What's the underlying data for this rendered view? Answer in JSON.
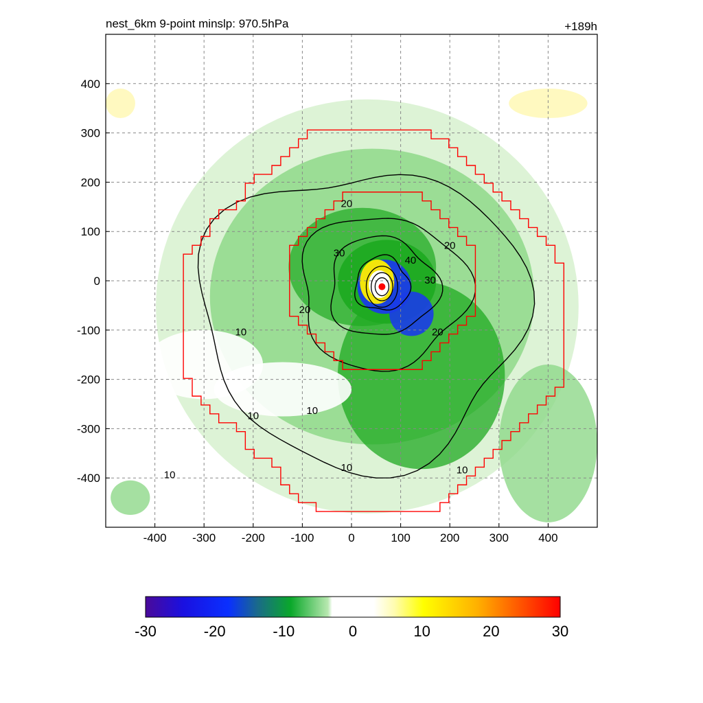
{
  "chart_data": {
    "type": "heatmap",
    "title_left": "nest_6km  9-point minslp: 970.5hPa",
    "title_right": "+189h",
    "xlim": [
      -500,
      500
    ],
    "ylim": [
      -500,
      500
    ],
    "x_ticks": [
      -400,
      -300,
      -200,
      -100,
      0,
      100,
      200,
      300,
      400
    ],
    "y_ticks": [
      400,
      300,
      200,
      100,
      0,
      -100,
      -200,
      -300,
      -400
    ],
    "grid": true,
    "center": [
      62,
      -12
    ],
    "contour_levels": [
      10,
      20,
      30,
      40
    ],
    "contour_labels": [
      {
        "text": "20",
        "x": -10,
        "y": 155
      },
      {
        "text": "20",
        "x": 200,
        "y": 70
      },
      {
        "text": "30",
        "x": -25,
        "y": 55
      },
      {
        "text": "40",
        "x": 120,
        "y": 40
      },
      {
        "text": "30",
        "x": 160,
        "y": 0
      },
      {
        "text": "20",
        "x": -95,
        "y": -60
      },
      {
        "text": "20",
        "x": 175,
        "y": -105
      },
      {
        "text": "10",
        "x": -225,
        "y": -105
      },
      {
        "text": "10",
        "x": -200,
        "y": -275
      },
      {
        "text": "10",
        "x": -80,
        "y": -265
      },
      {
        "text": "10",
        "x": -370,
        "y": -395
      },
      {
        "text": "10",
        "x": -10,
        "y": -380
      },
      {
        "text": "10",
        "x": 225,
        "y": -385
      }
    ],
    "nest_boundaries": [
      {
        "name": "outer",
        "half_width": 380,
        "center": [
          45,
          -80
        ]
      },
      {
        "name": "inner",
        "half_width": 185,
        "center": [
          60,
          0
        ]
      }
    ],
    "colorbar": {
      "min": -30,
      "max": 30,
      "ticks": [
        -30,
        -20,
        -10,
        0,
        10,
        20,
        30
      ]
    },
    "colors": {
      "boundary": "#ff0000",
      "contour": "#000000",
      "center_marker": "#ff0000",
      "green_light": "#d9f2d2",
      "green_mid": "#8fd88a",
      "green_dark": "#1faa22",
      "blue": "#1a3ce8",
      "yellow": "#ffee00"
    }
  }
}
